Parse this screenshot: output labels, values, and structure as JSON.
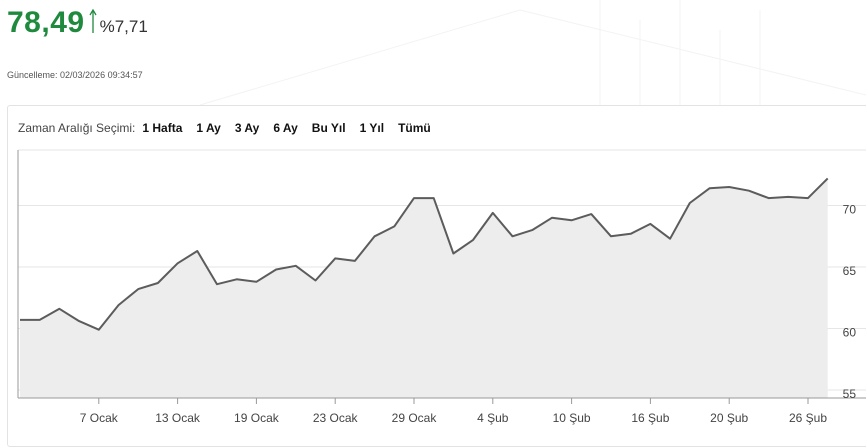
{
  "quote": {
    "price": "78,49",
    "change": "%7,71",
    "updated": "Güncelleme: 02/03/2026 09:34:57",
    "color_up": "#1f8a3e"
  },
  "range_selector": {
    "label": "Zaman Aralığı Seçimi:",
    "options": [
      "1 Hafta",
      "1 Ay",
      "3 Ay",
      "6 Ay",
      "Bu Yıl",
      "1 Yıl",
      "Tümü"
    ]
  },
  "chart_data": {
    "type": "area",
    "xlabel": "",
    "ylabel": "",
    "ylim": [
      55,
      75
    ],
    "yticks": [
      55,
      60,
      65,
      70
    ],
    "xtick_labels": [
      "7 Ocak",
      "13 Ocak",
      "19 Ocak",
      "23 Ocak",
      "29 Ocak",
      "4 Şub",
      "10 Şub",
      "16 Şub",
      "20 Şub",
      "26 Şub"
    ],
    "xtick_index": [
      4,
      8,
      12,
      16,
      20,
      24,
      28,
      32,
      36,
      40
    ],
    "grid": true,
    "line_color": "#5c5c5c",
    "fill_color": "#ededed",
    "series": [
      {
        "values": [
          60.7,
          60.7,
          61.6,
          60.6,
          59.9,
          61.9,
          63.2,
          63.7,
          65.3,
          66.3,
          63.6,
          64.0,
          63.8,
          64.8,
          65.1,
          63.9,
          65.7,
          65.5,
          67.5,
          68.3,
          70.6,
          70.6,
          66.1,
          67.2,
          69.4,
          67.5,
          68.0,
          69.0,
          68.8,
          69.3,
          67.5,
          67.7,
          68.5,
          67.3,
          70.2,
          71.4,
          71.5,
          71.2,
          70.6,
          70.7,
          70.6,
          72.2
        ]
      }
    ]
  }
}
